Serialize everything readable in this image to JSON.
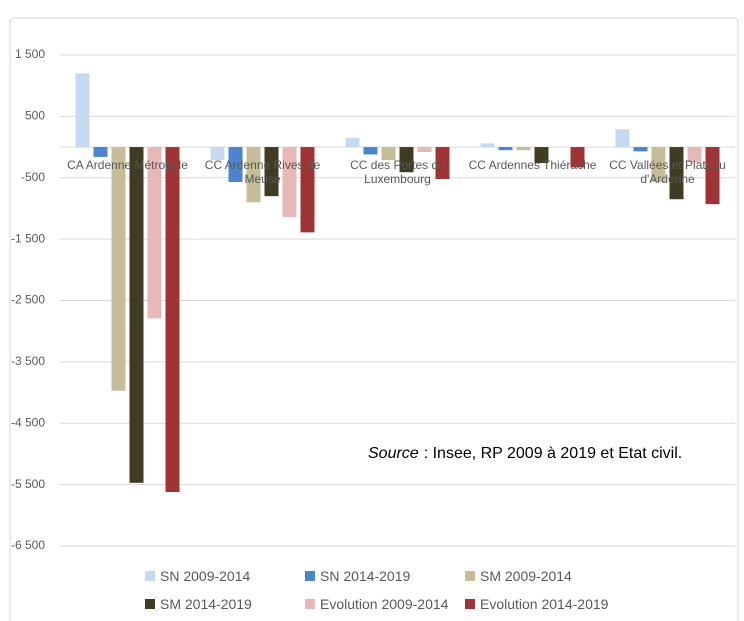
{
  "chart_data": {
    "type": "bar",
    "categories": [
      "CA Ardenne Métropole",
      "CC Ardenne Rives de Meuse",
      "CC des Portes du Luxembourg",
      "CC Ardennes Thiérache",
      "CC Vallées et Plateau d'Ardenne"
    ],
    "series": [
      {
        "name": "SN 2009-2014",
        "color": "#c5d9f1",
        "values": [
          1200,
          -210,
          150,
          60,
          290
        ]
      },
      {
        "name": "SN 2014-2019",
        "color": "#4a86d0",
        "values": [
          -160,
          -570,
          -120,
          -50,
          -70
        ]
      },
      {
        "name": "SM 2009-2014",
        "color": "#c4bd97",
        "values": [
          -3970,
          -900,
          -210,
          -50,
          -570
        ]
      },
      {
        "name": "SM 2014-2019",
        "color": "#3f3c22",
        "values": [
          -5470,
          -800,
          -410,
          -260,
          -850
        ]
      },
      {
        "name": "Evolution 2009-2014",
        "color": "#e6b8b7",
        "values": [
          -2790,
          -1140,
          -80,
          0,
          -250
        ]
      },
      {
        "name": "Evolution 2014-2019",
        "color": "#a03434",
        "values": [
          -5620,
          -1390,
          -520,
          -330,
          -930
        ]
      }
    ],
    "ylim": [
      -6500,
      1500
    ],
    "yticks": [
      {
        "value": 1500,
        "label": "1 500"
      },
      500,
      -500,
      {
        "value": -1500,
        "label": "-1 500"
      },
      {
        "value": -2500,
        "label": "-2 500"
      },
      {
        "value": -3500,
        "label": "-3 500"
      },
      {
        "value": -4500,
        "label": "-4 500"
      },
      {
        "value": -5500,
        "label": "-5 500"
      },
      {
        "value": -6500,
        "label": "-6 500"
      }
    ],
    "grid": true,
    "annotation": {
      "label": "Source",
      "text": ": Insee, RP 2009 à 2019 et Etat civil."
    }
  }
}
